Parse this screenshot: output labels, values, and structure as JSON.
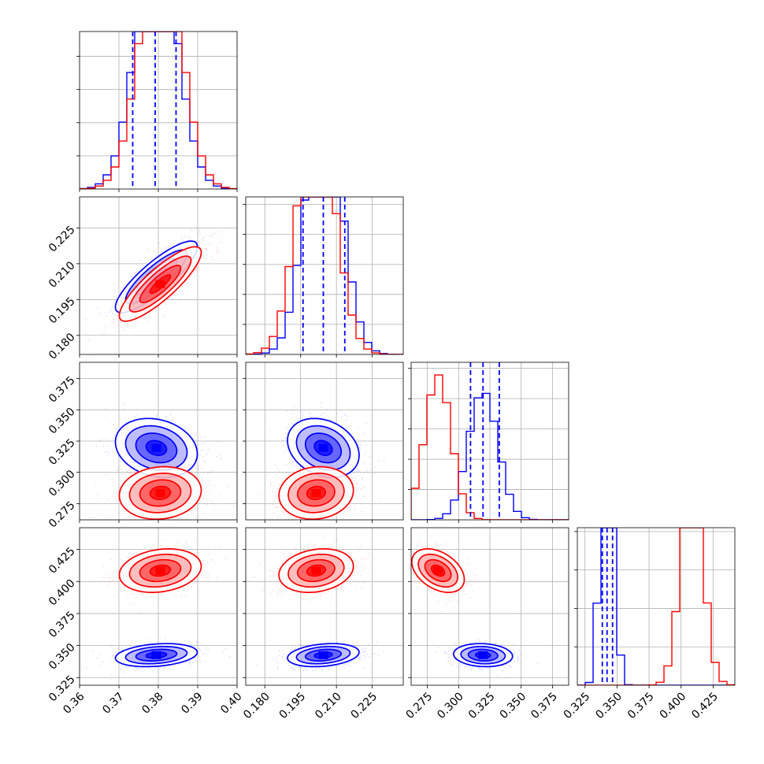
{
  "chart_data": {
    "type": "corner",
    "title": "",
    "grid": true,
    "colors": {
      "series_a": "#0000ff",
      "series_b": "#ff0000"
    },
    "series": [
      {
        "color": "blue",
        "mean": [
          0.3795,
          0.2045,
          0.3195,
          0.3425
        ],
        "std": [
          0.0052,
          0.0075,
          0.0118,
          0.0045
        ],
        "corr": {
          "0-1": 0.85,
          "0-2": -0.2,
          "1-2": -0.25,
          "0-3": 0.25,
          "1-3": 0.25,
          "2-3": -0.1
        }
      },
      {
        "color": "red",
        "mean": [
          0.3805,
          0.2015,
          0.2835,
          0.4085
        ],
        "std": [
          0.0052,
          0.0078,
          0.0105,
          0.0085
        ],
        "corr": {
          "0-1": 0.85,
          "0-2": 0.1,
          "1-2": 0.1,
          "0-3": 0.2,
          "1-3": 0.2,
          "2-3": -0.4
        }
      }
    ],
    "quantile_lines": {
      "color": "blue",
      "values": [
        [
          0.3735,
          0.3792,
          0.3845
        ],
        [
          0.196,
          0.2045,
          0.2135
        ],
        [
          0.3095,
          0.3195,
          0.3325
        ],
        [
          0.3385,
          0.3422,
          0.3465
        ]
      ]
    },
    "dims": [
      {
        "range": [
          0.36,
          0.4
        ],
        "ticks": [
          "0.36",
          "0.37",
          "0.38",
          "0.39",
          "0.40"
        ]
      },
      {
        "range": [
          0.172,
          0.238
        ],
        "ticks": [
          "0.180",
          "0.195",
          "0.210",
          "0.225"
        ]
      },
      {
        "range": [
          0.262,
          0.388
        ],
        "ticks": [
          "0.275",
          "0.300",
          "0.325",
          "0.350",
          "0.375"
        ]
      },
      {
        "range": [
          0.319,
          0.442
        ],
        "ticks": [
          "0.325",
          "0.350",
          "0.375",
          "0.400",
          "0.425"
        ]
      }
    ],
    "diag_hist_ymax": [
      0.095,
      0.105,
      0.26,
      0.205
    ],
    "diag_hist_yticks": [
      [
        0.02,
        0.04,
        0.06,
        0.08
      ],
      [
        0.02,
        0.04,
        0.06,
        0.08,
        0.1
      ],
      [
        0.05,
        0.1,
        0.15,
        0.2,
        0.25
      ],
      [
        0.05,
        0.1,
        0.15,
        0.2
      ]
    ],
    "bins": 20
  }
}
